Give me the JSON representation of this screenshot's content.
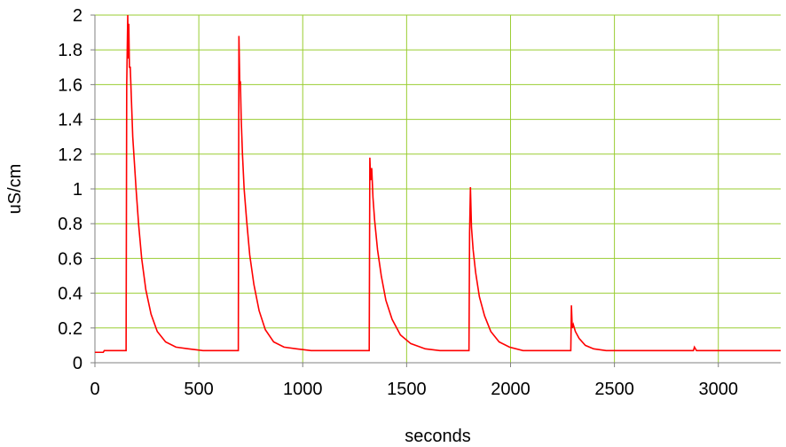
{
  "chart_data": {
    "type": "line",
    "xlabel": "seconds",
    "ylabel": "uS/cm",
    "xlim": [
      0,
      3300
    ],
    "ylim": [
      0,
      2
    ],
    "x_ticks": [
      "0",
      "500",
      "1000",
      "1500",
      "2000",
      "2500",
      "3000"
    ],
    "y_ticks": [
      "0",
      "0.2",
      "0.4",
      "0.6",
      "0.8",
      "1",
      "1.2",
      "1.4",
      "1.6",
      "1.8",
      "2"
    ],
    "grid": true,
    "legend": "none",
    "colors": {
      "line": "#ff0000",
      "grid": "#9acd32",
      "axis": "#808080"
    },
    "series": [
      {
        "x": [
          0,
          40,
          45,
          150,
          153,
          158,
          160,
          163,
          166,
          170,
          176,
          182,
          190,
          198,
          210,
          225,
          245,
          270,
          300,
          340,
          390,
          450,
          520,
          560,
          690,
          693,
          697,
          700,
          704,
          710,
          718,
          730,
          745,
          765,
          790,
          820,
          860,
          910,
          970,
          1040,
          1320,
          1323,
          1327,
          1332,
          1338,
          1346,
          1360,
          1378,
          1400,
          1430,
          1470,
          1520,
          1590,
          1660,
          1800,
          1803,
          1807,
          1812,
          1820,
          1832,
          1850,
          1875,
          1905,
          1945,
          1995,
          2060,
          2290,
          2293,
          2297,
          2302,
          2312,
          2330,
          2360,
          2400,
          2460,
          2880,
          2885,
          2895,
          3300
        ],
        "y": [
          0.06,
          0.06,
          0.07,
          0.07,
          1.6,
          2.0,
          1.75,
          1.95,
          1.7,
          1.7,
          1.5,
          1.3,
          1.15,
          1.0,
          0.8,
          0.6,
          0.42,
          0.28,
          0.18,
          0.12,
          0.09,
          0.08,
          0.07,
          0.07,
          0.07,
          1.88,
          1.6,
          1.62,
          1.4,
          1.2,
          1.0,
          0.82,
          0.62,
          0.45,
          0.3,
          0.19,
          0.12,
          0.09,
          0.08,
          0.07,
          0.07,
          1.18,
          1.05,
          1.12,
          0.95,
          0.82,
          0.65,
          0.5,
          0.36,
          0.25,
          0.16,
          0.11,
          0.08,
          0.07,
          0.07,
          0.75,
          1.01,
          0.78,
          0.65,
          0.52,
          0.38,
          0.27,
          0.18,
          0.12,
          0.09,
          0.07,
          0.07,
          0.33,
          0.2,
          0.22,
          0.18,
          0.14,
          0.1,
          0.08,
          0.07,
          0.07,
          0.09,
          0.07,
          0.07
        ]
      }
    ]
  }
}
